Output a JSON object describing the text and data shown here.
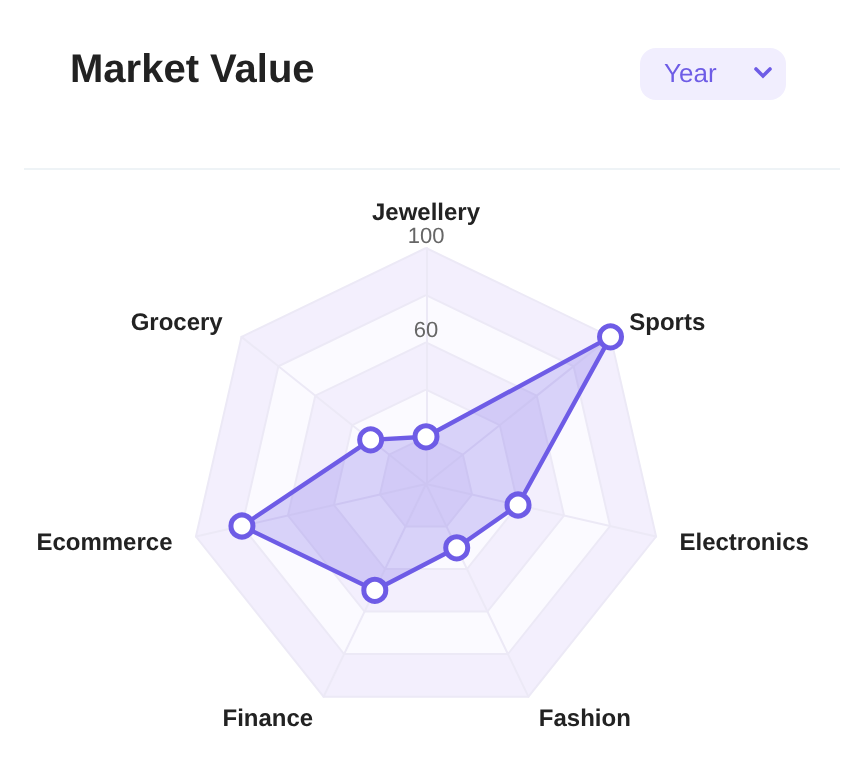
{
  "chart_data": {
    "type": "radar",
    "title": "Market Value",
    "annotations": [
      "Year"
    ],
    "categories": [
      "Jewellery",
      "Sports",
      "Electronics",
      "Fashion",
      "Finance",
      "Ecommerce",
      "Grocery"
    ],
    "series": [
      {
        "color": "#6e5ce6",
        "values": [
          20,
          100,
          40,
          30,
          50,
          80,
          30
        ]
      }
    ],
    "ylim": [
      0,
      100
    ],
    "yticks": [
      60,
      100
    ],
    "marker": "circle",
    "line_style": "solid"
  }
}
